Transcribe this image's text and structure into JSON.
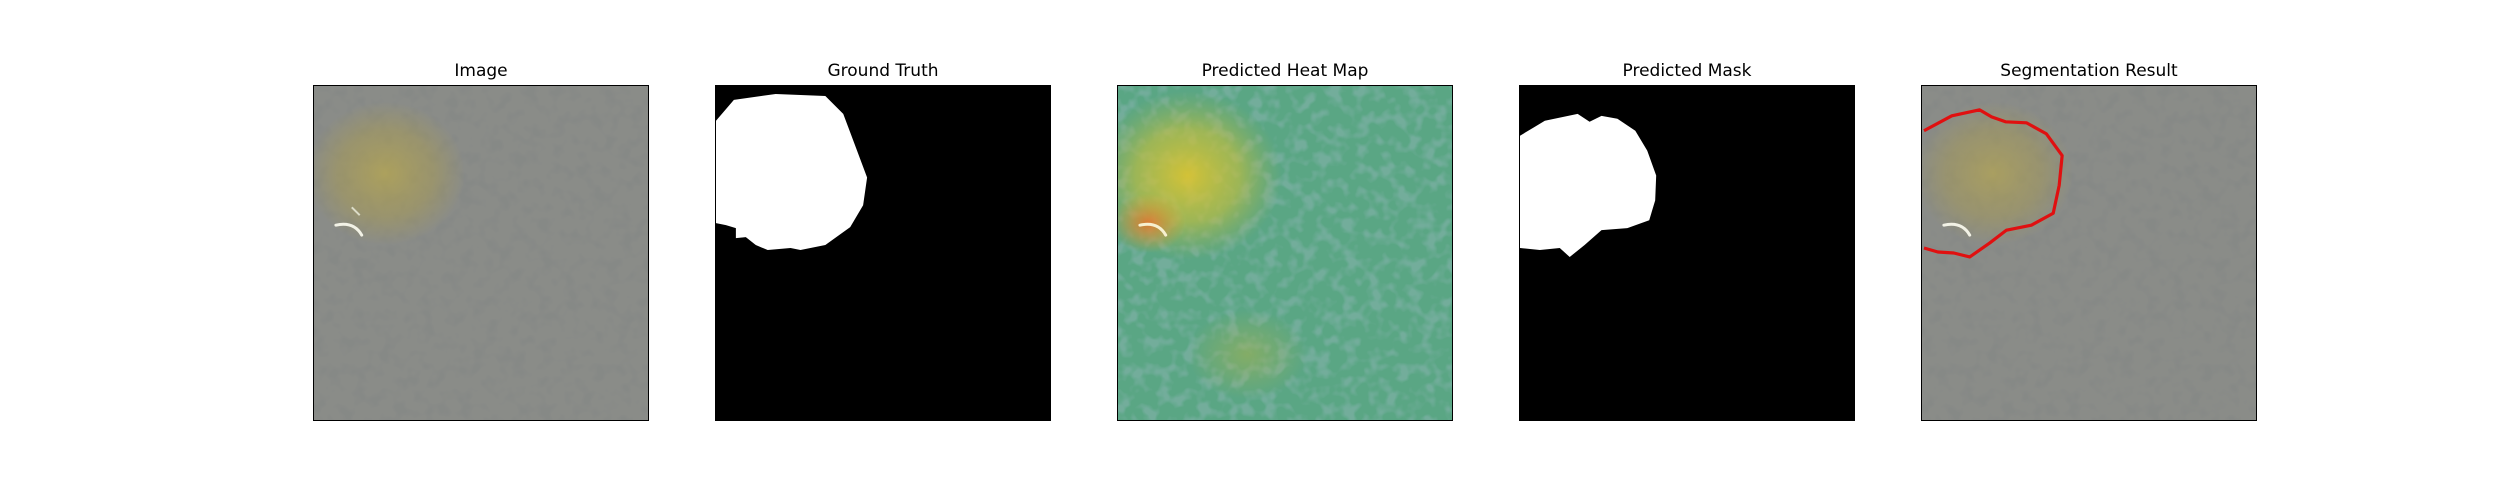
{
  "figure": {
    "background": "#ffffff",
    "panels": [
      {
        "id": "image",
        "title": "Image"
      },
      {
        "id": "ground-truth",
        "title": "Ground Truth"
      },
      {
        "id": "heatmap",
        "title": "Predicted Heat Map"
      },
      {
        "id": "pred-mask",
        "title": "Predicted Mask"
      },
      {
        "id": "segmentation",
        "title": "Segmentation Result"
      }
    ]
  },
  "colors": {
    "texture_light": "#8a8c88",
    "texture_dark": "#3d3f3c",
    "heat_base": "#4f9f7d",
    "heat_hot": "#d5cf34",
    "mask_fg": "#ffffff",
    "mask_bg": "#000000",
    "contour": "#e01010"
  }
}
